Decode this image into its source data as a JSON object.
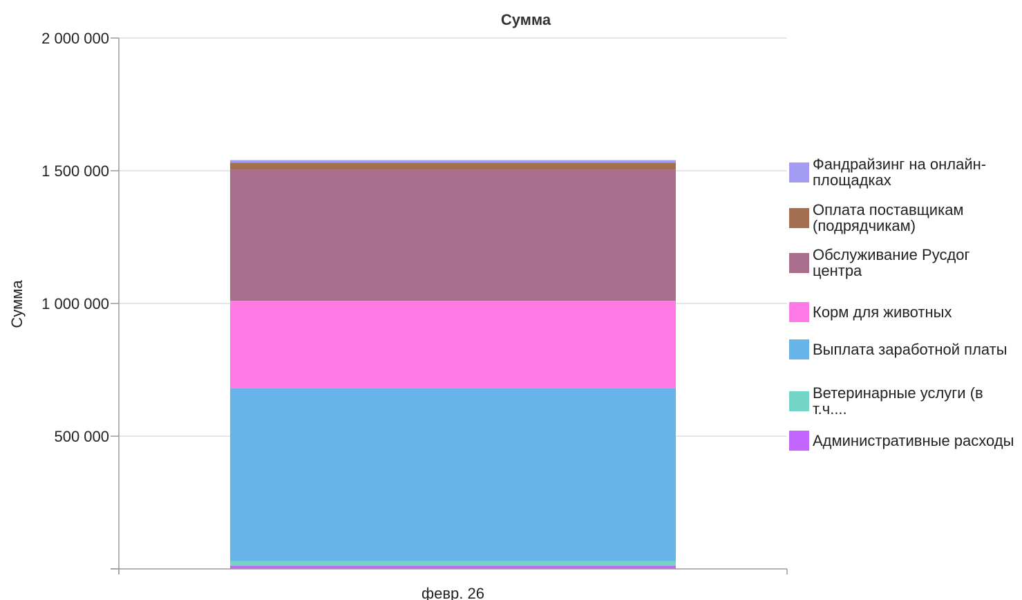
{
  "chart_data": {
    "type": "bar",
    "stacked": true,
    "title": "Сумма",
    "ylabel": "Сумма",
    "xlabel": "",
    "categories": [
      "февр. 26"
    ],
    "ylim": [
      0,
      2000000
    ],
    "yticks": [
      500000,
      1000000,
      1500000,
      2000000
    ],
    "ytick_labels": [
      "500 000",
      "1 000 000",
      "1 500 000",
      "2 000 000"
    ],
    "grid": true,
    "legend_position": "right",
    "series": [
      {
        "name": "Административные расходы",
        "values": [
          12000
        ],
        "color": "#c266ff"
      },
      {
        "name": "Ветеринарные услуги (в т.ч....",
        "values": [
          18000
        ],
        "color": "#74d4c8"
      },
      {
        "name": "Выплата заработной платы",
        "values": [
          650000
        ],
        "color": "#67b4ea"
      },
      {
        "name": "Корм для животных",
        "values": [
          330000
        ],
        "color": "#ff7ae7"
      },
      {
        "name": "Обслуживание Русдог центра",
        "values": [
          495000
        ],
        "color": "#a96e8b"
      },
      {
        "name": "Оплата поставщикам (подрядчикам)",
        "values": [
          25000
        ],
        "color": "#a46f4f"
      },
      {
        "name": "Фандрайзинг на онлайн-площадках",
        "values": [
          10000
        ],
        "color": "#a39cf2"
      }
    ]
  }
}
